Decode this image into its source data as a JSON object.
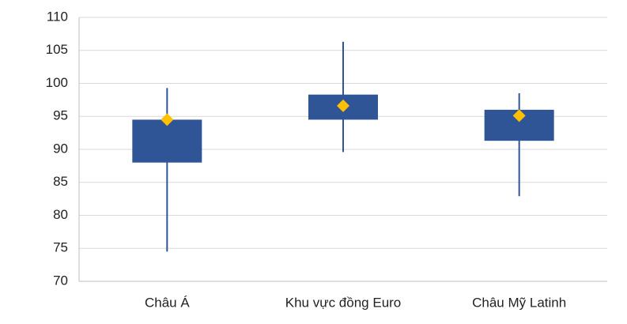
{
  "chart_data": {
    "type": "box",
    "categories": [
      "Châu Á",
      "Khu vực đồng Euro",
      "Châu Mỹ Latinh"
    ],
    "high": [
      99.3,
      106.3,
      98.5
    ],
    "box_top": [
      94.5,
      98.3,
      96.0
    ],
    "box_bottom": [
      88.0,
      94.5,
      91.3
    ],
    "low": [
      74.5,
      89.6,
      82.9
    ],
    "marker": [
      94.5,
      96.6,
      95.1
    ],
    "box_color": "#2f5597",
    "marker_color": "#ffc000",
    "ylim": [
      70,
      110
    ],
    "yticks": [
      70,
      75,
      80,
      85,
      90,
      95,
      100,
      105,
      110
    ],
    "grid": true
  }
}
